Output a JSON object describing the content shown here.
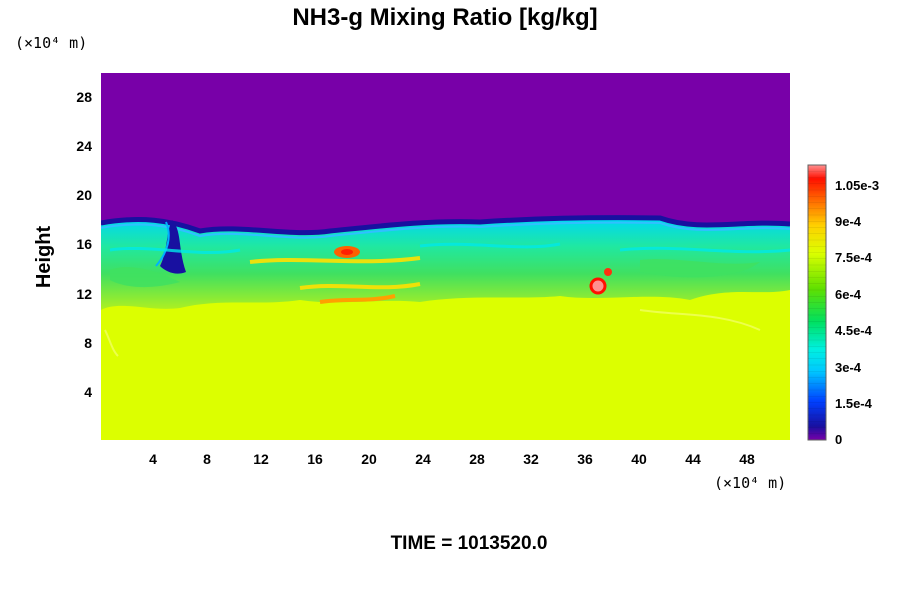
{
  "chart_data": {
    "type": "heatmap",
    "title": "NH3-g Mixing Ratio [kg/kg]",
    "ylabel": "Height",
    "x_unit": "(×10⁴ m)",
    "y_unit": "(×10⁴ m)",
    "footer": "TIME = 1013520.0",
    "xlim": [
      0,
      51
    ],
    "ylim": [
      0,
      30
    ],
    "x_ticks": [
      "4",
      "8",
      "12",
      "16",
      "20",
      "24",
      "28",
      "32",
      "36",
      "40",
      "44",
      "48"
    ],
    "y_ticks": [
      "4",
      "8",
      "12",
      "16",
      "20",
      "24",
      "28"
    ],
    "colorbar": {
      "range": [
        0,
        0.0011
      ],
      "tick_values": [
        0,
        0.00015,
        0.0003,
        0.00045,
        0.0006,
        0.00075,
        0.0009,
        0.00105
      ],
      "tick_labels": [
        "0",
        "1.5e-4",
        "3e-4",
        "4.5e-4",
        "6e-4",
        "7.5e-4",
        "9e-4",
        "1.05e-3"
      ]
    },
    "field": {
      "upper_value": 0.0,
      "lower_value": 0.00078,
      "layer_value": 0.00052,
      "boundary_height_approx": 17.5,
      "layer_bottom_approx": 11.0
    }
  },
  "colors": {
    "background": "#ffffff",
    "upper_region": "#7800a8",
    "lower_region": "#dcff00",
    "mid_layer": "#30e080",
    "boundary_dark": "#1810a0",
    "hot_spot": "#ff3010"
  }
}
